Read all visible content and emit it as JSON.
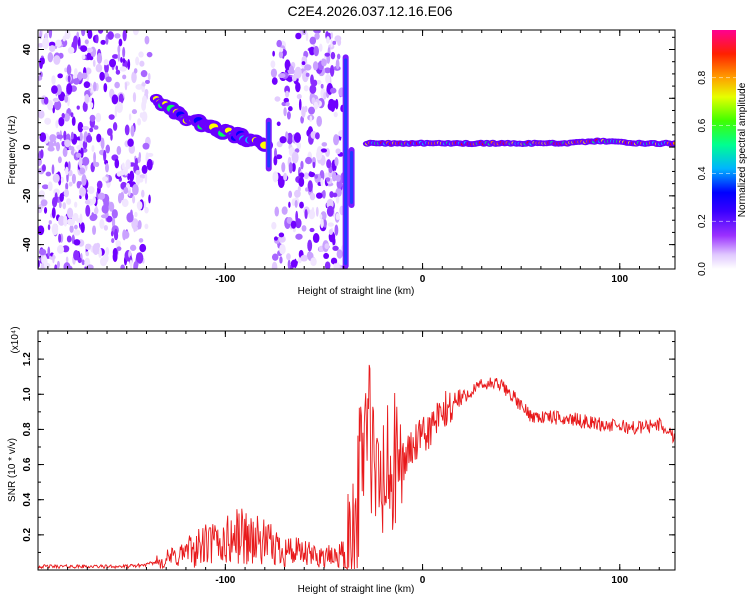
{
  "title": "C2E4.2026.037.12.16.E06",
  "chart_data": [
    {
      "type": "heatmap",
      "title": "C2E4.2026.037.12.16.E06",
      "xlabel": "Height of straight line (km)",
      "ylabel": "Frequency (Hz)",
      "xlim": [
        -195,
        128
      ],
      "ylim": [
        -50,
        48
      ],
      "x_ticks": [
        -100,
        0,
        100
      ],
      "x_tick_labels": [
        "-100",
        "0",
        "100"
      ],
      "y_ticks": [
        -40,
        -20,
        0,
        20,
        40
      ],
      "y_tick_labels": [
        "-40",
        "-20",
        "0",
        "20",
        "40"
      ],
      "colorbar": {
        "label": "Normalized spectral amplitude",
        "range": [
          0,
          1
        ],
        "ticks": [
          0.0,
          0.2,
          0.4,
          0.6,
          0.8
        ],
        "tick_labels": [
          "0.0",
          "0.2",
          "0.4",
          "0.6",
          "0.8"
        ],
        "colors": [
          "#ffffff",
          "#c38cf5",
          "#6a00ff",
          "#0000ff",
          "#00c8ff",
          "#00ff60",
          "#ffff00",
          "#ff8000",
          "#ff0000",
          "#ff00a0"
        ]
      },
      "noise_regions": [
        {
          "x_range": [
            -195,
            -137
          ],
          "y_range": [
            -50,
            48
          ]
        },
        {
          "x_range": [
            -76,
            -40
          ],
          "y_range": [
            -50,
            48
          ]
        }
      ],
      "ridges": [
        {
          "x": [
            -135,
            -125,
            -115,
            -105,
            -95,
            -85,
            -80
          ],
          "y": [
            20,
            14,
            10,
            7,
            5,
            2,
            0
          ]
        },
        {
          "x": [
            -28,
            -10,
            10,
            30,
            50,
            70,
            90,
            110,
            128
          ],
          "y": [
            1.5,
            1.5,
            1.5,
            1.5,
            1.5,
            1.5,
            2.5,
            1.5,
            1.5
          ]
        }
      ],
      "spikes": [
        {
          "x": -78,
          "y_range": [
            -10,
            12
          ]
        },
        {
          "x": -39,
          "y_range": [
            -50,
            38
          ]
        },
        {
          "x": -36,
          "y_range": [
            -25,
            0
          ]
        }
      ]
    },
    {
      "type": "line",
      "xlabel": "Height of straight line (km)",
      "ylabel": "SNR (10 * v/v)",
      "y_scale_label": "(x10⁴)",
      "xlim": [
        -195,
        128
      ],
      "ylim": [
        0,
        1.36
      ],
      "x_ticks": [
        -100,
        0,
        100
      ],
      "x_tick_labels": [
        "-100",
        "0",
        "100"
      ],
      "y_ticks": [
        0.2,
        0.4,
        0.6,
        0.8,
        1.0,
        1.2
      ],
      "y_tick_labels": [
        "0.2",
        "0.4",
        "0.6",
        "0.8",
        "1.0",
        "1.2"
      ],
      "series": [
        {
          "name": "SNR",
          "color": "#e8191b",
          "x": [
            -195,
            -170,
            -150,
            -140,
            -130,
            -120,
            -110,
            -100,
            -92,
            -85,
            -80,
            -75,
            -70,
            -65,
            -60,
            -55,
            -50,
            -45,
            -40,
            -35,
            -32,
            -30,
            -28,
            -26,
            -24,
            -22,
            -20,
            -15,
            -10,
            -5,
            0,
            5,
            10,
            15,
            20,
            25,
            30,
            35,
            40,
            45,
            50,
            55,
            60,
            65,
            70,
            75,
            80,
            85,
            90,
            95,
            100,
            105,
            110,
            115,
            120,
            125,
            128
          ],
          "y": [
            0.02,
            0.02,
            0.02,
            0.03,
            0.06,
            0.1,
            0.14,
            0.16,
            0.2,
            0.17,
            0.15,
            0.13,
            0.12,
            0.1,
            0.09,
            0.08,
            0.08,
            0.07,
            0.1,
            0.25,
            0.5,
            0.75,
            0.9,
            0.7,
            0.45,
            0.5,
            0.5,
            0.55,
            0.62,
            0.7,
            0.75,
            0.82,
            0.88,
            0.94,
            0.98,
            1.02,
            1.05,
            1.06,
            1.05,
            1.0,
            0.93,
            0.88,
            0.87,
            0.87,
            0.86,
            0.86,
            0.85,
            0.84,
            0.83,
            0.82,
            0.82,
            0.81,
            0.81,
            0.82,
            0.83,
            0.78,
            0.76
          ]
        }
      ]
    }
  ]
}
